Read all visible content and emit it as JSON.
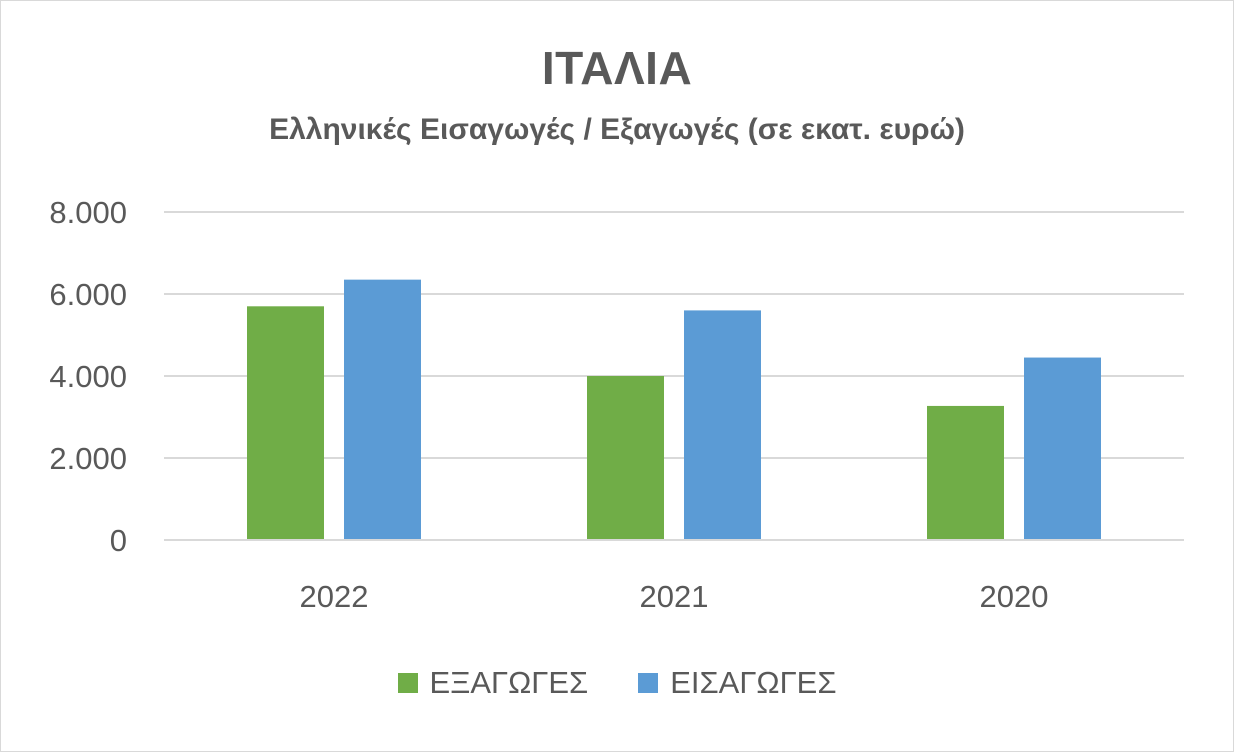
{
  "chart_data": {
    "type": "bar",
    "title": "ΙΤΑΛΙΑ",
    "subtitle": "Ελληνικές Εισαγωγές / Εξαγωγές (σε εκατ. ευρώ)",
    "categories": [
      "2022",
      "2021",
      "2020"
    ],
    "series": [
      {
        "name": "ΕΞΑΓΩΓΕΣ",
        "color": "#70ad47",
        "values": [
          5700,
          4000,
          3270
        ]
      },
      {
        "name": "ΕΙΣΑΓΩΓΕΣ",
        "color": "#5b9bd5",
        "values": [
          6350,
          5600,
          4450
        ]
      }
    ],
    "ylim": [
      0,
      8000
    ],
    "yticks": [
      0,
      2000,
      4000,
      6000,
      8000
    ],
    "ytick_labels": [
      "0",
      "2.000",
      "4.000",
      "6.000",
      "8.000"
    ],
    "grid": true,
    "legend_position": "bottom"
  }
}
